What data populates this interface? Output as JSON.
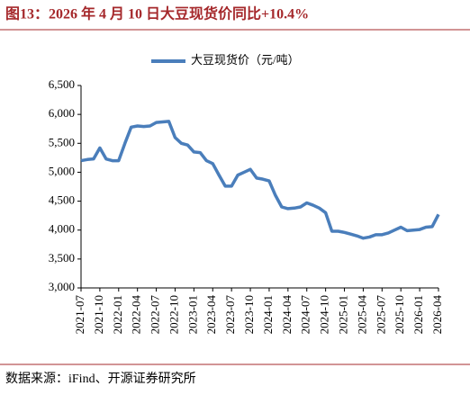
{
  "chart_data": {
    "type": "line",
    "title": "图13：2026 年 4 月 10 日大豆现货价同比+10.4%",
    "source": "数据来源：iFind、开源证券研究所",
    "x": [
      "2021-07",
      "2021-08",
      "2021-09",
      "2021-10",
      "2021-11",
      "2021-12",
      "2022-01",
      "2022-02",
      "2022-03",
      "2022-04",
      "2022-05",
      "2022-06",
      "2022-07",
      "2022-08",
      "2022-09",
      "2022-10",
      "2022-11",
      "2022-12",
      "2023-01",
      "2023-02",
      "2023-03",
      "2023-04",
      "2023-05",
      "2023-06",
      "2023-07",
      "2023-08",
      "2023-09",
      "2023-10",
      "2023-11",
      "2023-12",
      "2024-01",
      "2024-02",
      "2024-03",
      "2024-04",
      "2024-05",
      "2024-06",
      "2024-07",
      "2024-08",
      "2024-09",
      "2024-10",
      "2024-11",
      "2024-12",
      "2025-01",
      "2025-02",
      "2025-03",
      "2025-04",
      "2025-05",
      "2025-06",
      "2025-07",
      "2025-08",
      "2025-09",
      "2025-10",
      "2025-11",
      "2025-12",
      "2026-01",
      "2026-02",
      "2026-03",
      "2026-04"
    ],
    "series": [
      {
        "name": "大豆现货价（元/吨）",
        "color": "#4a7ebb",
        "values": [
          5200,
          5220,
          5230,
          5420,
          5230,
          5200,
          5200,
          5500,
          5780,
          5800,
          5790,
          5800,
          5860,
          5870,
          5880,
          5600,
          5500,
          5470,
          5350,
          5340,
          5200,
          5150,
          4950,
          4760,
          4760,
          4950,
          5000,
          5050,
          4900,
          4880,
          4850,
          4600,
          4400,
          4370,
          4380,
          4400,
          4470,
          4430,
          4380,
          4300,
          3980,
          3980,
          3960,
          3930,
          3900,
          3860,
          3880,
          3920,
          3920,
          3950,
          4000,
          4050,
          3990,
          4000,
          4010,
          4050,
          4060,
          4270
        ]
      }
    ],
    "xticks": [
      "2021-07",
      "2021-10",
      "2022-01",
      "2022-04",
      "2022-07",
      "2022-10",
      "2023-01",
      "2023-04",
      "2023-07",
      "2023-10",
      "2024-01",
      "2024-04",
      "2024-07",
      "2024-10",
      "2025-01",
      "2025-04",
      "2025-07",
      "2025-10",
      "2026-01",
      "2026-04"
    ],
    "ylim": [
      3000,
      6500
    ],
    "yticks": [
      {
        "value": 3000,
        "label": "3,000"
      },
      {
        "value": 3500,
        "label": "3,500"
      },
      {
        "value": 4000,
        "label": "4,000"
      },
      {
        "value": 4500,
        "label": "4,500"
      },
      {
        "value": 5000,
        "label": "5,000"
      },
      {
        "value": 5500,
        "label": "5,500"
      },
      {
        "value": 6000,
        "label": "6,000"
      },
      {
        "value": 6500,
        "label": "6,500"
      }
    ]
  }
}
